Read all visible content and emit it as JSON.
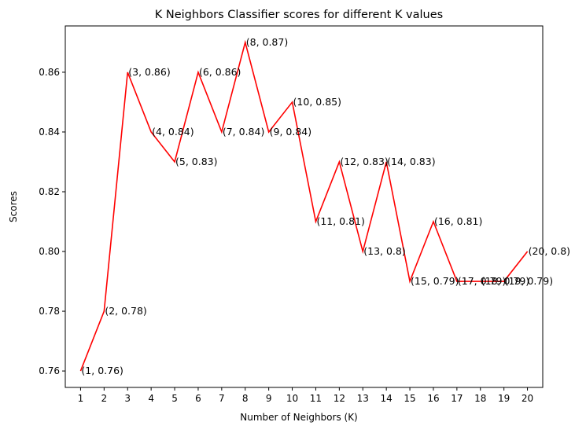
{
  "chart_data": {
    "type": "line",
    "title": "K Neighbors Classifier scores for different K values",
    "xlabel": "Number of Neighbors (K)",
    "ylabel": "Scores",
    "x": [
      1,
      2,
      3,
      4,
      5,
      6,
      7,
      8,
      9,
      10,
      11,
      12,
      13,
      14,
      15,
      16,
      17,
      18,
      19,
      20
    ],
    "series": [
      {
        "values": [
          0.76,
          0.78,
          0.86,
          0.84,
          0.83,
          0.86,
          0.84,
          0.87,
          0.84,
          0.85,
          0.81,
          0.83,
          0.8,
          0.83,
          0.79,
          0.81,
          0.79,
          0.79,
          0.79,
          0.8
        ]
      }
    ],
    "point_labels": [
      "(1, 0.76)",
      "(2, 0.78)",
      "(3, 0.86)",
      "(4, 0.84)",
      "(5, 0.83)",
      "(6, 0.86)",
      "(7, 0.84)",
      "(8, 0.87)",
      "(9, 0.84)",
      "(10, 0.85)",
      "(11, 0.81)",
      "(12, 0.83)",
      "(13, 0.8)",
      "(14, 0.83)",
      "(15, 0.79)",
      "(16, 0.81)",
      "(17, 0.79)",
      "(18, 0.79)",
      "(19, 0.79)",
      "(20, 0.8)"
    ],
    "x_ticks": [
      "1",
      "2",
      "3",
      "4",
      "5",
      "6",
      "7",
      "8",
      "9",
      "10",
      "11",
      "12",
      "13",
      "14",
      "15",
      "16",
      "17",
      "18",
      "19",
      "20"
    ],
    "y_ticks": [
      "0.76",
      "0.78",
      "0.80",
      "0.82",
      "0.84",
      "0.86"
    ],
    "y_tick_values": [
      0.76,
      0.78,
      0.8,
      0.82,
      0.84,
      0.86
    ],
    "xlim": [
      0.35,
      20.65
    ],
    "ylim": [
      0.7545,
      0.8755
    ],
    "line_color": "#ff0000",
    "grid": false,
    "legend": "none"
  }
}
